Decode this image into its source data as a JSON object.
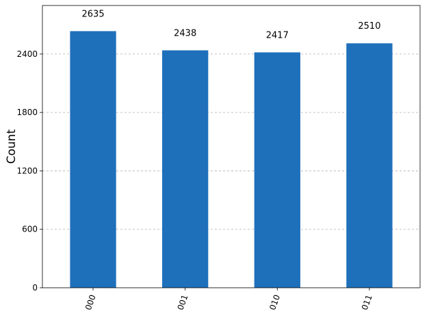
{
  "chart_data": {
    "type": "bar",
    "ylabel": "Count",
    "categories": [
      "000",
      "001",
      "010",
      "011"
    ],
    "values": [
      2635,
      2438,
      2417,
      2510
    ],
    "color": "#1f70bb",
    "ylim": [
      0,
      2898.5
    ],
    "yticks": [
      0,
      600,
      1200,
      1800,
      2400
    ],
    "grid": true
  }
}
